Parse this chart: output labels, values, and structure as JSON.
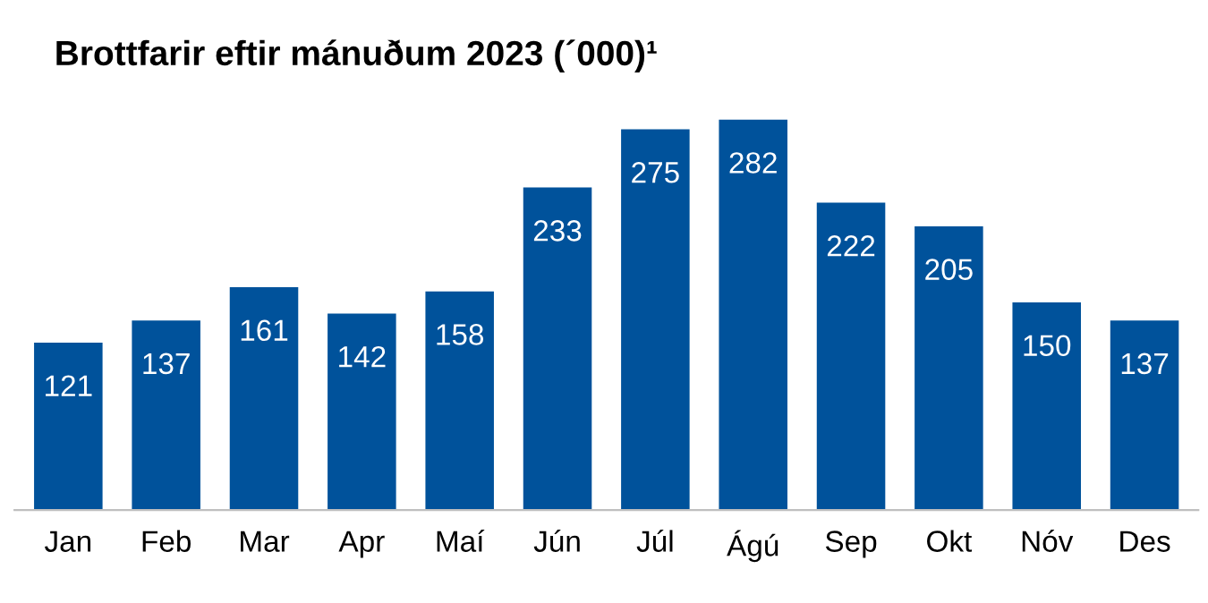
{
  "chart_data": {
    "type": "bar",
    "title": "Brottfarir eftir mánuðum 2023 (´000)¹",
    "categories": [
      "Jan",
      "Feb",
      "Mar",
      "Apr",
      "Maí",
      "Jún",
      "Júl",
      "Ágú",
      "Sep",
      "Okt",
      "Nóv",
      "Des"
    ],
    "values": [
      121,
      137,
      161,
      142,
      158,
      233,
      275,
      282,
      222,
      205,
      150,
      137
    ],
    "color": "#00529b",
    "tick_labels": "x",
    "data_labels": true,
    "grid": false,
    "legend": false
  }
}
